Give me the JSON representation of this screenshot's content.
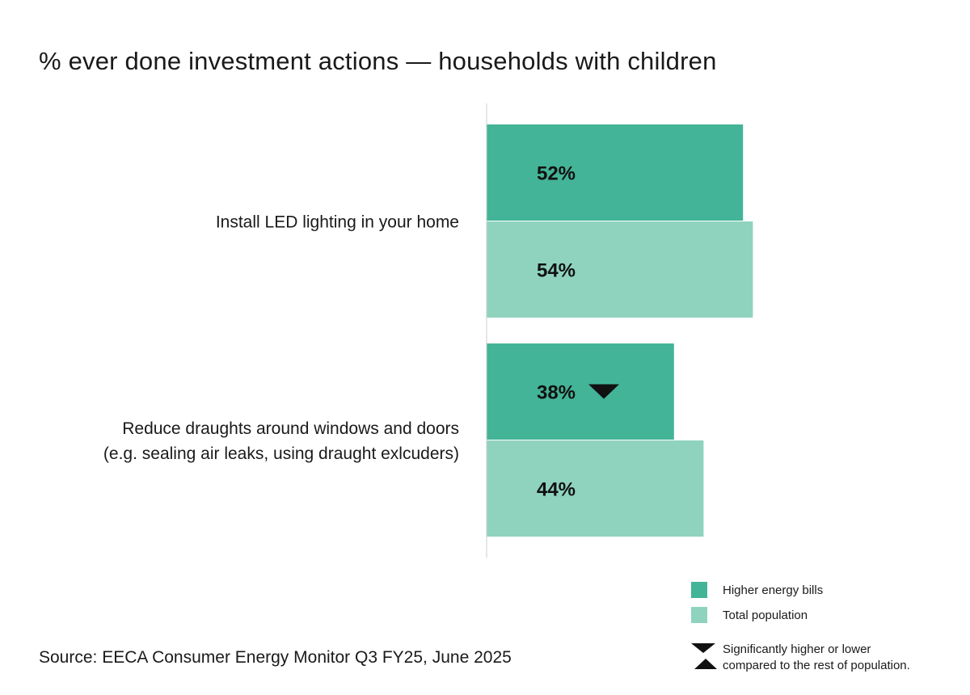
{
  "title": "% ever done investment actions — households with children",
  "source": "Source: EECA Consumer Energy Monitor Q3 FY25, June 2025",
  "colors": {
    "higher_energy_bills": "#43b497",
    "total_population": "#8fd3be",
    "marker": "#111111",
    "axis": "#cccccc"
  },
  "legend": {
    "items": [
      {
        "label": "Higher energy bills",
        "color": "#43b497"
      },
      {
        "label": "Total population",
        "color": "#8fd3be"
      }
    ],
    "significance_line1": "Significantly higher or lower",
    "significance_line2": "compared to the rest of population.",
    "significance_icons": [
      "triangle-down-icon",
      "triangle-up-icon"
    ]
  },
  "chart_data": {
    "type": "bar",
    "orientation": "horizontal",
    "categories": [
      [
        "Install LED lighting in your home"
      ],
      [
        "Reduce draughts around windows and doors",
        "(e.g. sealing air leaks, using draught exlcuders)"
      ]
    ],
    "series": [
      {
        "name": "Higher energy bills",
        "values": [
          52,
          38
        ],
        "labels": [
          "52%",
          "38%"
        ],
        "significance": [
          null,
          "lower"
        ]
      },
      {
        "name": "Total population",
        "values": [
          54,
          44
        ],
        "labels": [
          "54%",
          "44%"
        ],
        "significance": [
          null,
          null
        ]
      }
    ],
    "xlim": [
      0,
      100
    ],
    "grid": false,
    "legend_position": "bottom-right"
  }
}
